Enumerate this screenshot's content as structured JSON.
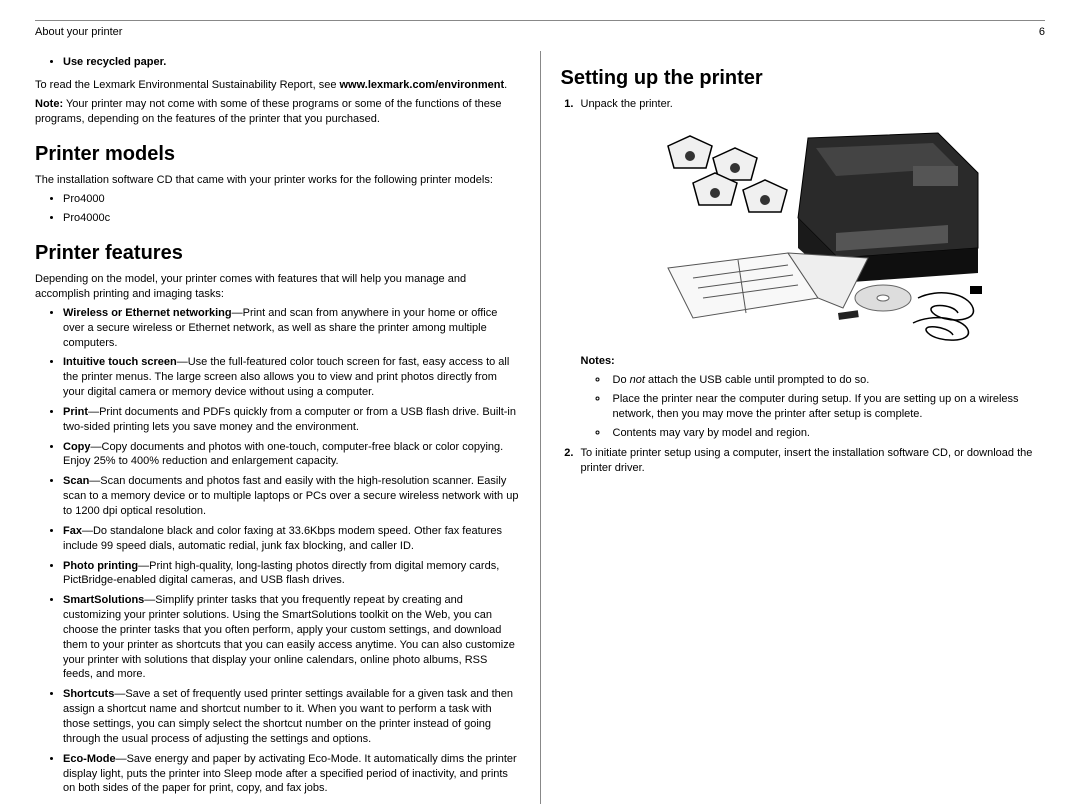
{
  "header": {
    "title": "About your printer",
    "page_number": "6"
  },
  "left": {
    "top_bullet": "Use recycled paper.",
    "report_line_pre": "To read the Lexmark Environmental Sustainability Report, see ",
    "report_link": "www.lexmark.com/environment",
    "report_line_post": ".",
    "note_label": "Note:",
    "note_text": " Your printer may not come with some of these programs or some of the functions of these programs, depending on the features of the printer that you purchased.",
    "printer_models": {
      "heading": "Printer models",
      "intro": "The installation software CD that came with your printer works for the following printer models:",
      "models": [
        "Pro4000",
        "Pro4000c"
      ]
    },
    "printer_features": {
      "heading": "Printer features",
      "intro": "Depending on the model, your printer comes with features that will help you manage and accomplish printing and imaging tasks:",
      "features": [
        {
          "term": "Wireless or Ethernet networking",
          "desc": "—Print and scan from anywhere in your home or office over a secure wireless or Ethernet network, as well as share the printer among multiple computers."
        },
        {
          "term": "Intuitive touch screen",
          "desc": "—Use the full-featured color touch screen for fast, easy access to all the printer menus. The large screen also allows you to view and print photos directly from your digital camera or memory device without using a computer."
        },
        {
          "term": "Print",
          "desc": "—Print documents and PDFs quickly from a computer or from a USB flash drive. Built-in two-sided printing lets you save money and the environment."
        },
        {
          "term": "Copy",
          "desc": "—Copy documents and photos with one-touch, computer-free black or color copying. Enjoy 25% to 400% reduction and enlargement capacity."
        },
        {
          "term": "Scan",
          "desc": "—Scan documents and photos fast and easily with the high-resolution scanner. Easily scan to a memory device or to multiple laptops or PCs over a secure wireless network with up to 1200 dpi optical resolution."
        },
        {
          "term": "Fax",
          "desc": "—Do standalone black and color faxing at 33.6Kbps modem speed. Other fax features include 99 speed dials, automatic redial, junk fax blocking, and caller ID."
        },
        {
          "term": "Photo printing",
          "desc": "—Print high-quality, long-lasting photos directly from digital memory cards, PictBridge-enabled digital cameras, and USB flash drives."
        },
        {
          "term": "SmartSolutions",
          "desc": "—Simplify printer tasks that you frequently repeat by creating and customizing your printer solutions. Using the SmartSolutions toolkit on the Web, you can choose the printer tasks that you often perform, apply your custom settings, and download them to your printer as shortcuts that you can easily access anytime. You can also customize your printer with solutions that display your online calendars, online photo albums, RSS feeds, and more."
        },
        {
          "term": "Shortcuts",
          "desc": "—Save a set of frequently used printer settings available for a given task and then assign a shortcut name and shortcut number to it. When you want to perform a task with those settings, you can simply select the shortcut number on the printer instead of going through the usual process of adjusting the settings and options."
        },
        {
          "term": "Eco-Mode",
          "desc": "—Save energy and paper by activating Eco-Mode. It automatically dims the printer display light, puts the printer into Sleep mode after a specified period of inactivity, and prints on both sides of the paper for print, copy, and fax jobs."
        }
      ]
    }
  },
  "right": {
    "heading": "Setting up the printer",
    "step1": "Unpack the printer.",
    "notes_label": "Notes:",
    "notes": [
      {
        "pre": "Do ",
        "em": "not",
        "post": " attach the USB cable until prompted to do so."
      },
      {
        "pre": "Place the printer near the computer during setup. If you are setting up on a wireless network, then you may move the printer after setup is complete.",
        "em": "",
        "post": ""
      },
      {
        "pre": "Contents may vary by model and region.",
        "em": "",
        "post": ""
      }
    ],
    "step2": "To initiate printer setup using a computer, insert the installation software CD, or download the printer driver."
  },
  "colors": {
    "text": "#000000",
    "border": "#888888"
  }
}
